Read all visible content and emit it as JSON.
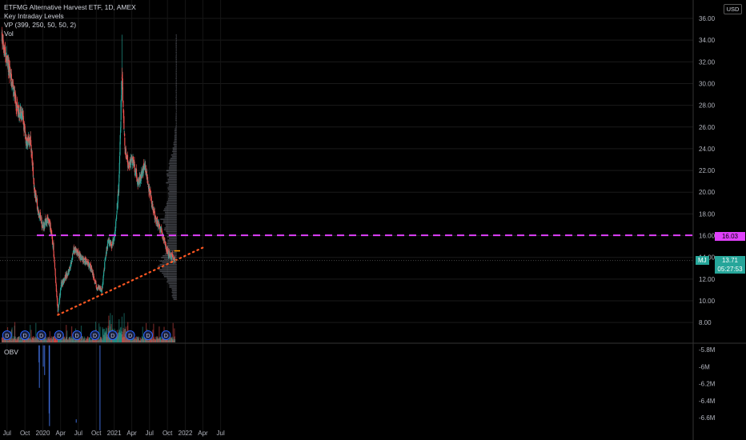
{
  "legend": {
    "title": "ETFMG Alternative Harvest ETF, 1D, AMEX",
    "indicator1": "Key Intraday Levels",
    "indicator2": "VP (399, 250, 50, 50, 2)",
    "indicator3": "Vol"
  },
  "obv_label": "OBV",
  "currency": "USD",
  "symbol_tag": "MJ",
  "last_price": "13.71",
  "countdown": "05:27:53",
  "level_tag": "16.03",
  "colors": {
    "up": "#26a69a",
    "down": "#ef5350",
    "level_line": "#e040fb",
    "trendline": "#ff5722",
    "poc": "#ff9800",
    "obv": "#3d6bd6",
    "dividend": "#2962ff"
  },
  "chart_data": {
    "type": "candlestick",
    "x_ticks": [
      "Jul",
      "Oct",
      "2020",
      "Apr",
      "Jul",
      "Oct",
      "2021",
      "Apr",
      "Jul",
      "Oct",
      "2022",
      "Apr",
      "Jul"
    ],
    "y_ticks": [
      "36.00",
      "34.00",
      "32.00",
      "30.00",
      "28.00",
      "26.00",
      "24.00",
      "22.00",
      "20.00",
      "18.00",
      "16.00",
      "14.00",
      "12.00",
      "10.00",
      "8.00"
    ],
    "ylim": [
      7.0,
      37.2
    ],
    "price_path": [
      [
        "2019-06-05",
        34.2
      ],
      [
        "2019-07-15",
        31.0
      ],
      [
        "2019-08-20",
        28.0
      ],
      [
        "2019-09-20",
        26.8
      ],
      [
        "2019-10-10",
        24.5
      ],
      [
        "2019-10-31",
        24.8
      ],
      [
        "2019-11-20",
        20.0
      ],
      [
        "2019-12-10",
        18.2
      ],
      [
        "2019-12-31",
        16.8
      ],
      [
        "2020-01-20",
        17.5
      ],
      [
        "2020-02-05",
        17.2
      ],
      [
        "2020-02-25",
        14.8
      ],
      [
        "2020-03-18",
        9.0
      ],
      [
        "2020-04-05",
        11.5
      ],
      [
        "2020-05-15",
        12.8
      ],
      [
        "2020-06-10",
        14.8
      ],
      [
        "2020-07-20",
        13.9
      ],
      [
        "2020-09-01",
        13.2
      ],
      [
        "2020-10-05",
        11.2
      ],
      [
        "2020-10-30",
        11.0
      ],
      [
        "2020-11-15",
        13.6
      ],
      [
        "2020-12-01",
        15.5
      ],
      [
        "2020-12-20",
        15.0
      ],
      [
        "2021-01-05",
        16.2
      ],
      [
        "2021-01-25",
        20.5
      ],
      [
        "2021-02-10",
        30.5
      ],
      [
        "2021-02-25",
        24.0
      ],
      [
        "2021-03-15",
        22.5
      ],
      [
        "2021-04-05",
        23.0
      ],
      [
        "2021-05-05",
        20.8
      ],
      [
        "2021-06-08",
        22.5
      ],
      [
        "2021-07-01",
        20.0
      ],
      [
        "2021-08-01",
        17.5
      ],
      [
        "2021-09-01",
        16.5
      ],
      [
        "2021-10-01",
        14.5
      ],
      [
        "2021-11-10",
        13.71
      ]
    ],
    "spike_high": {
      "date": "2021-02-10",
      "value": 34.5
    },
    "horizontal_level": 16.03,
    "trendline": {
      "from": [
        "2020-03-18",
        8.7
      ],
      "to": [
        "2022-04-01",
        14.9
      ]
    },
    "poc": {
      "value": 14.6,
      "from": "2021-11-05",
      "to": "2021-12-05"
    },
    "dividend_dates": [
      "2019-07-01",
      "2019-10-01",
      "2019-12-24",
      "2020-03-24",
      "2020-06-24",
      "2020-09-24",
      "2020-12-24",
      "2021-03-24",
      "2021-06-24",
      "2021-09-24"
    ],
    "dividend_label": "D",
    "obv_ticks": [
      "-5.8M",
      "-6M",
      "-6.2M",
      "-6.4M",
      "-6.6M"
    ],
    "obv_range": [
      -6.65,
      -5.75
    ]
  }
}
